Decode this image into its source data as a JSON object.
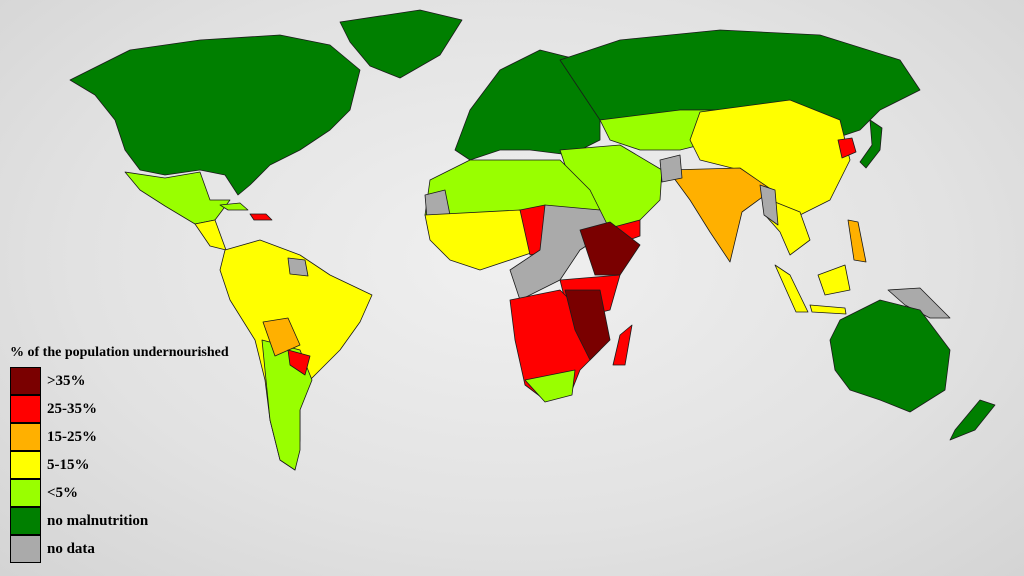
{
  "legend": {
    "title": "% of the population undernourished",
    "items": [
      {
        "label": ">35%",
        "color": "#7a0000"
      },
      {
        "label": "25-35%",
        "color": "#ff0000"
      },
      {
        "label": "15-25%",
        "color": "#ffb000"
      },
      {
        "label": "5-15%",
        "color": "#ffff00"
      },
      {
        "label": "<5%",
        "color": "#99ff00"
      },
      {
        "label": "no malnutrition",
        "color": "#007f00"
      },
      {
        "label": "no data",
        "color": "#aaaaaa"
      }
    ]
  }
}
